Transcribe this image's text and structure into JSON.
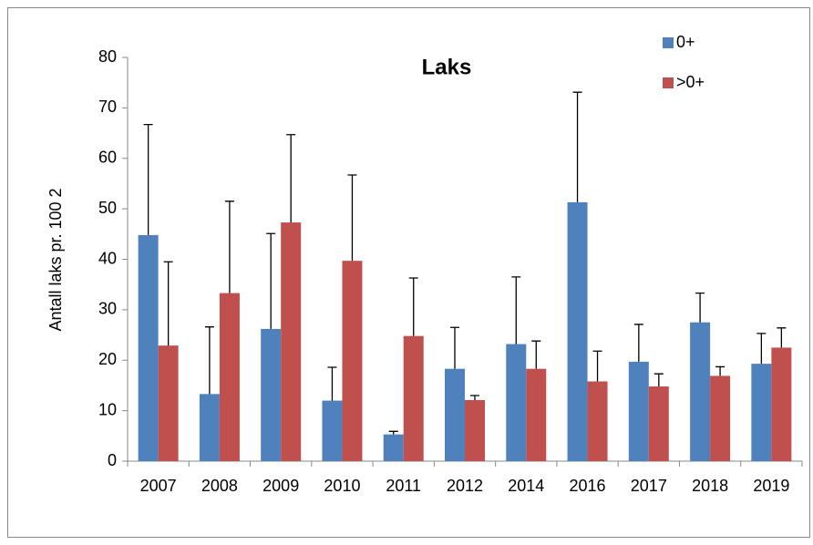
{
  "chart_data": {
    "type": "bar",
    "title": "Laks",
    "y_label": "Antall laks pr. 100  2",
    "categories": [
      "2007",
      "2008",
      "2009",
      "2010",
      "2011",
      "2012",
      "2014",
      "2016",
      "2017",
      "2018",
      "2019"
    ],
    "series": [
      {
        "name": "0+",
        "color": "#4f81bd",
        "values": [
          44.8,
          13.3,
          26.2,
          12.0,
          5.3,
          18.3,
          23.2,
          51.3,
          19.7,
          27.5,
          19.3
        ],
        "errors": [
          21.9,
          13.3,
          18.9,
          6.6,
          0.6,
          8.2,
          13.3,
          21.8,
          7.4,
          5.8,
          6.0
        ]
      },
      {
        "name": ">0+",
        "color": "#c0504d",
        "values": [
          22.9,
          33.3,
          47.3,
          39.7,
          24.8,
          12.1,
          18.3,
          15.8,
          14.8,
          16.9,
          22.5
        ],
        "errors": [
          16.6,
          18.2,
          17.4,
          17.0,
          11.5,
          0.9,
          5.5,
          6.0,
          2.5,
          1.8,
          3.9
        ]
      }
    ],
    "ylim": [
      0,
      80
    ],
    "yticks": [
      0,
      10,
      20,
      30,
      40,
      50,
      60,
      70,
      80
    ],
    "grid": false,
    "legend": "top-right"
  }
}
